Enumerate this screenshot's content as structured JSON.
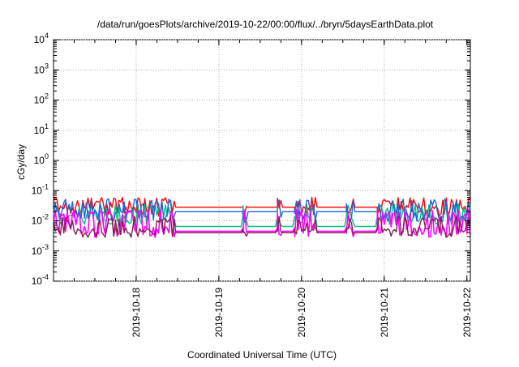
{
  "chart_data": {
    "type": "line",
    "title": "/data/run/goesPlots/archive/2019-10-22/00:00/flux/../bryn/5daysEarthData.plot",
    "xlabel": "Coordinated Universal Time (UTC)",
    "ylabel": "cGy/day",
    "x_range": [
      "2019-10-17 00:00",
      "2019-10-22 01:00"
    ],
    "ylim": [
      0.0001,
      10000
    ],
    "yscale": "log",
    "grid": true,
    "legend": "none",
    "x_ticks": [
      "2019-10-18",
      "2019-10-19",
      "2019-10-20",
      "2019-10-21",
      "2019-10-22"
    ],
    "y_ticks": [
      {
        "value": 0.0001,
        "base": "10",
        "exp": "-4"
      },
      {
        "value": 0.001,
        "base": "10",
        "exp": "-3"
      },
      {
        "value": 0.01,
        "base": "10",
        "exp": "-2"
      },
      {
        "value": 0.1,
        "base": "10",
        "exp": "-1"
      },
      {
        "value": 1,
        "base": "10",
        "exp": "0"
      },
      {
        "value": 10,
        "base": "10",
        "exp": "1"
      },
      {
        "value": 100,
        "base": "10",
        "exp": "2"
      },
      {
        "value": 1000,
        "base": "10",
        "exp": "3"
      },
      {
        "value": 10000,
        "base": "10",
        "exp": "4"
      }
    ],
    "series": [
      {
        "color": "#ff0000",
        "base": 0.028,
        "spike_base": 0.018,
        "spike_peak": 0.05,
        "flat": 0.028,
        "noise": 0.05
      },
      {
        "color": "#00c080",
        "base": 0.014,
        "spike_base": 0.009,
        "spike_peak": 0.03,
        "flat": 0.0065,
        "noise": 0.05
      },
      {
        "color": "#1e64dc",
        "base": 0.02,
        "spike_base": 0.012,
        "spike_peak": 0.045,
        "flat": 0.02,
        "noise": 0.05
      },
      {
        "color": "#ff00ff",
        "base": 0.006,
        "spike_base": 0.0035,
        "spike_peak": 0.02,
        "flat": 0.0045,
        "noise": 0.12
      },
      {
        "color": "#802050",
        "base": 0.005,
        "spike_base": 0.0035,
        "spike_peak": 0.012,
        "flat": 0.004,
        "noise": 0.05
      }
    ],
    "active_intervals": [
      [
        "2019-10-17 00:00",
        "2019-10-18 11:00"
      ],
      [
        "2019-10-19 07:00",
        "2019-10-19 08:00"
      ],
      [
        "2019-10-19 17:00",
        "2019-10-19 18:00"
      ],
      [
        "2019-10-19 22:00",
        "2019-10-20 04:00"
      ],
      [
        "2019-10-20 13:00",
        "2019-10-20 15:00"
      ],
      [
        "2019-10-20 22:00",
        "2019-10-22 01:00"
      ]
    ]
  }
}
